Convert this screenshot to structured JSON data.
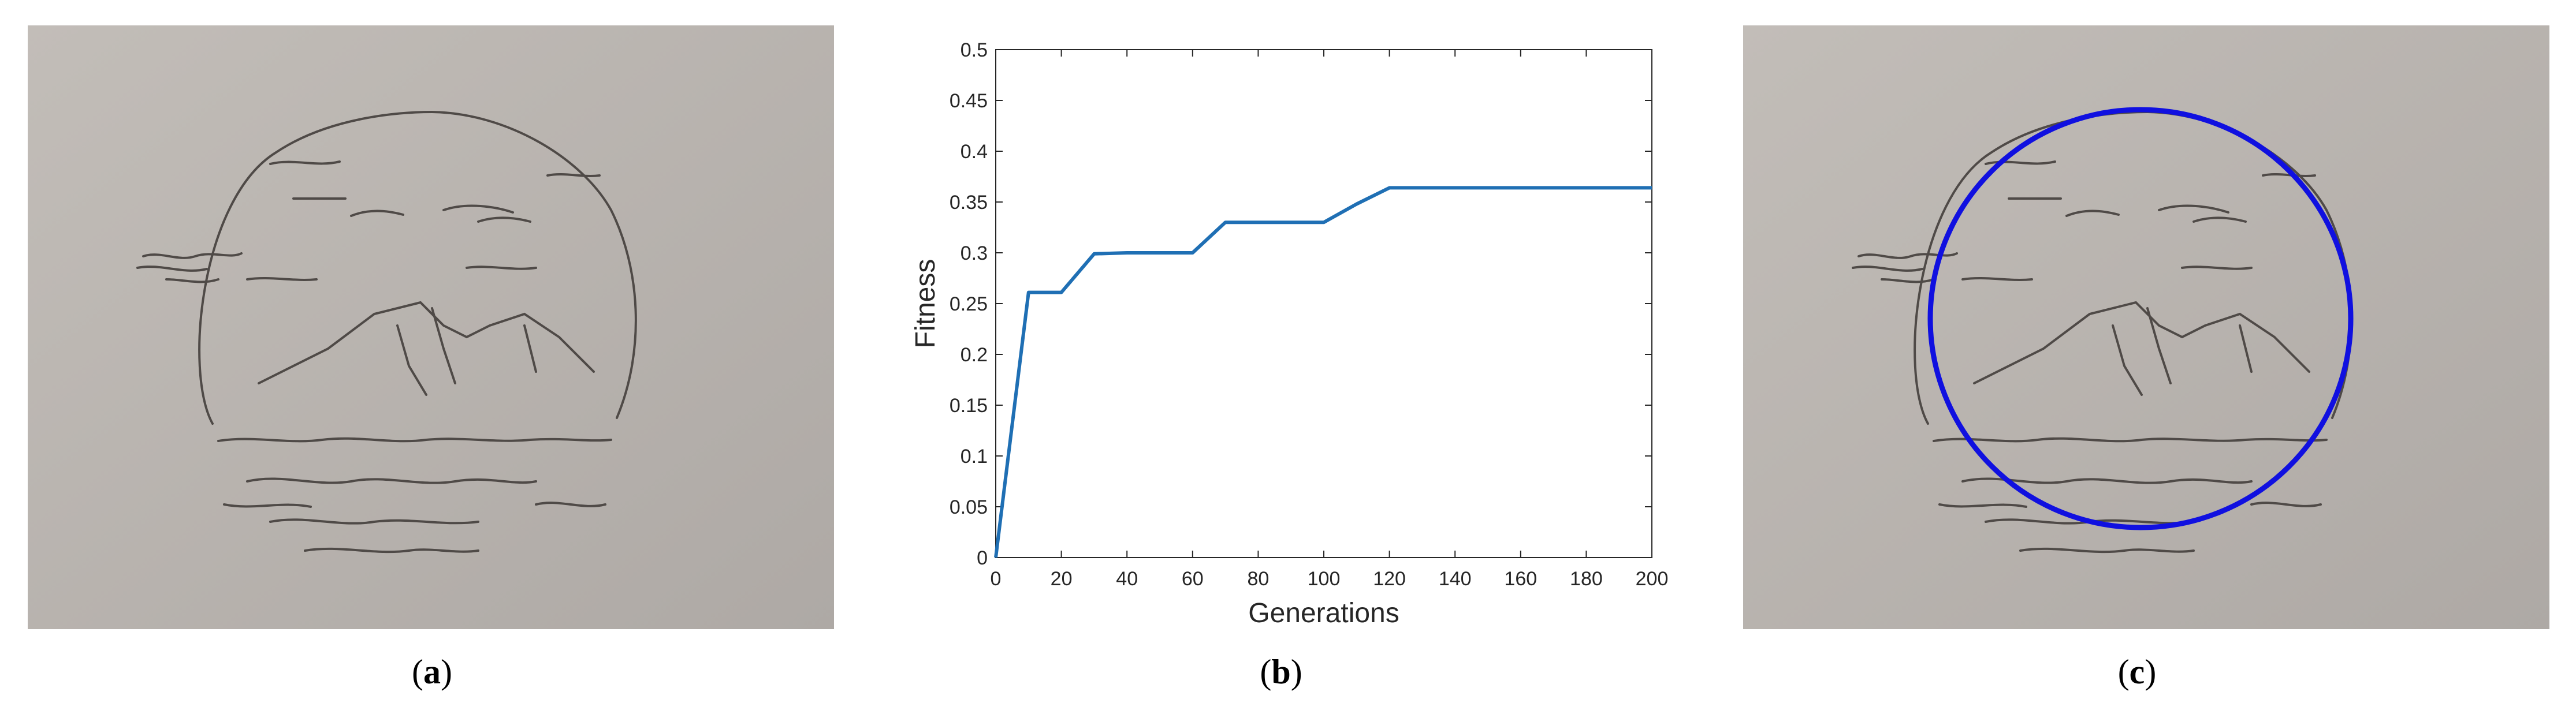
{
  "captions": {
    "a": "a",
    "b": "b",
    "c": "c"
  },
  "panels": {
    "a": {
      "content": "pencil sketch of mountains and waves inside a hand-drawn circle"
    },
    "c": {
      "content": "same sketch with detected circle overlaid",
      "overlay_color": "#1010e0"
    }
  },
  "colors": {
    "line": "#1f6fb4",
    "paper": "#bdb8b3",
    "pencil": "#4a4542"
  },
  "chart_data": {
    "type": "line",
    "title": "",
    "xlabel": "Generations",
    "ylabel": "Fitness",
    "xlim": [
      0,
      200
    ],
    "ylim": [
      0,
      0.5
    ],
    "xticks": [
      "0",
      "20",
      "40",
      "60",
      "80",
      "100",
      "120",
      "140",
      "160",
      "180",
      "200"
    ],
    "yticks": [
      "0",
      "0.05",
      "0.1",
      "0.15",
      "0.2",
      "0.25",
      "0.3",
      "0.35",
      "0.4",
      "0.45",
      "0.5"
    ],
    "grid": false,
    "series": [
      {
        "x": [
          0,
          10,
          20,
          30,
          40,
          60,
          70,
          80,
          100,
          110,
          120,
          200
        ],
        "y": [
          0,
          0.261,
          0.261,
          0.299,
          0.3,
          0.3,
          0.33,
          0.33,
          0.33,
          0.348,
          0.364,
          0.364
        ]
      }
    ]
  }
}
